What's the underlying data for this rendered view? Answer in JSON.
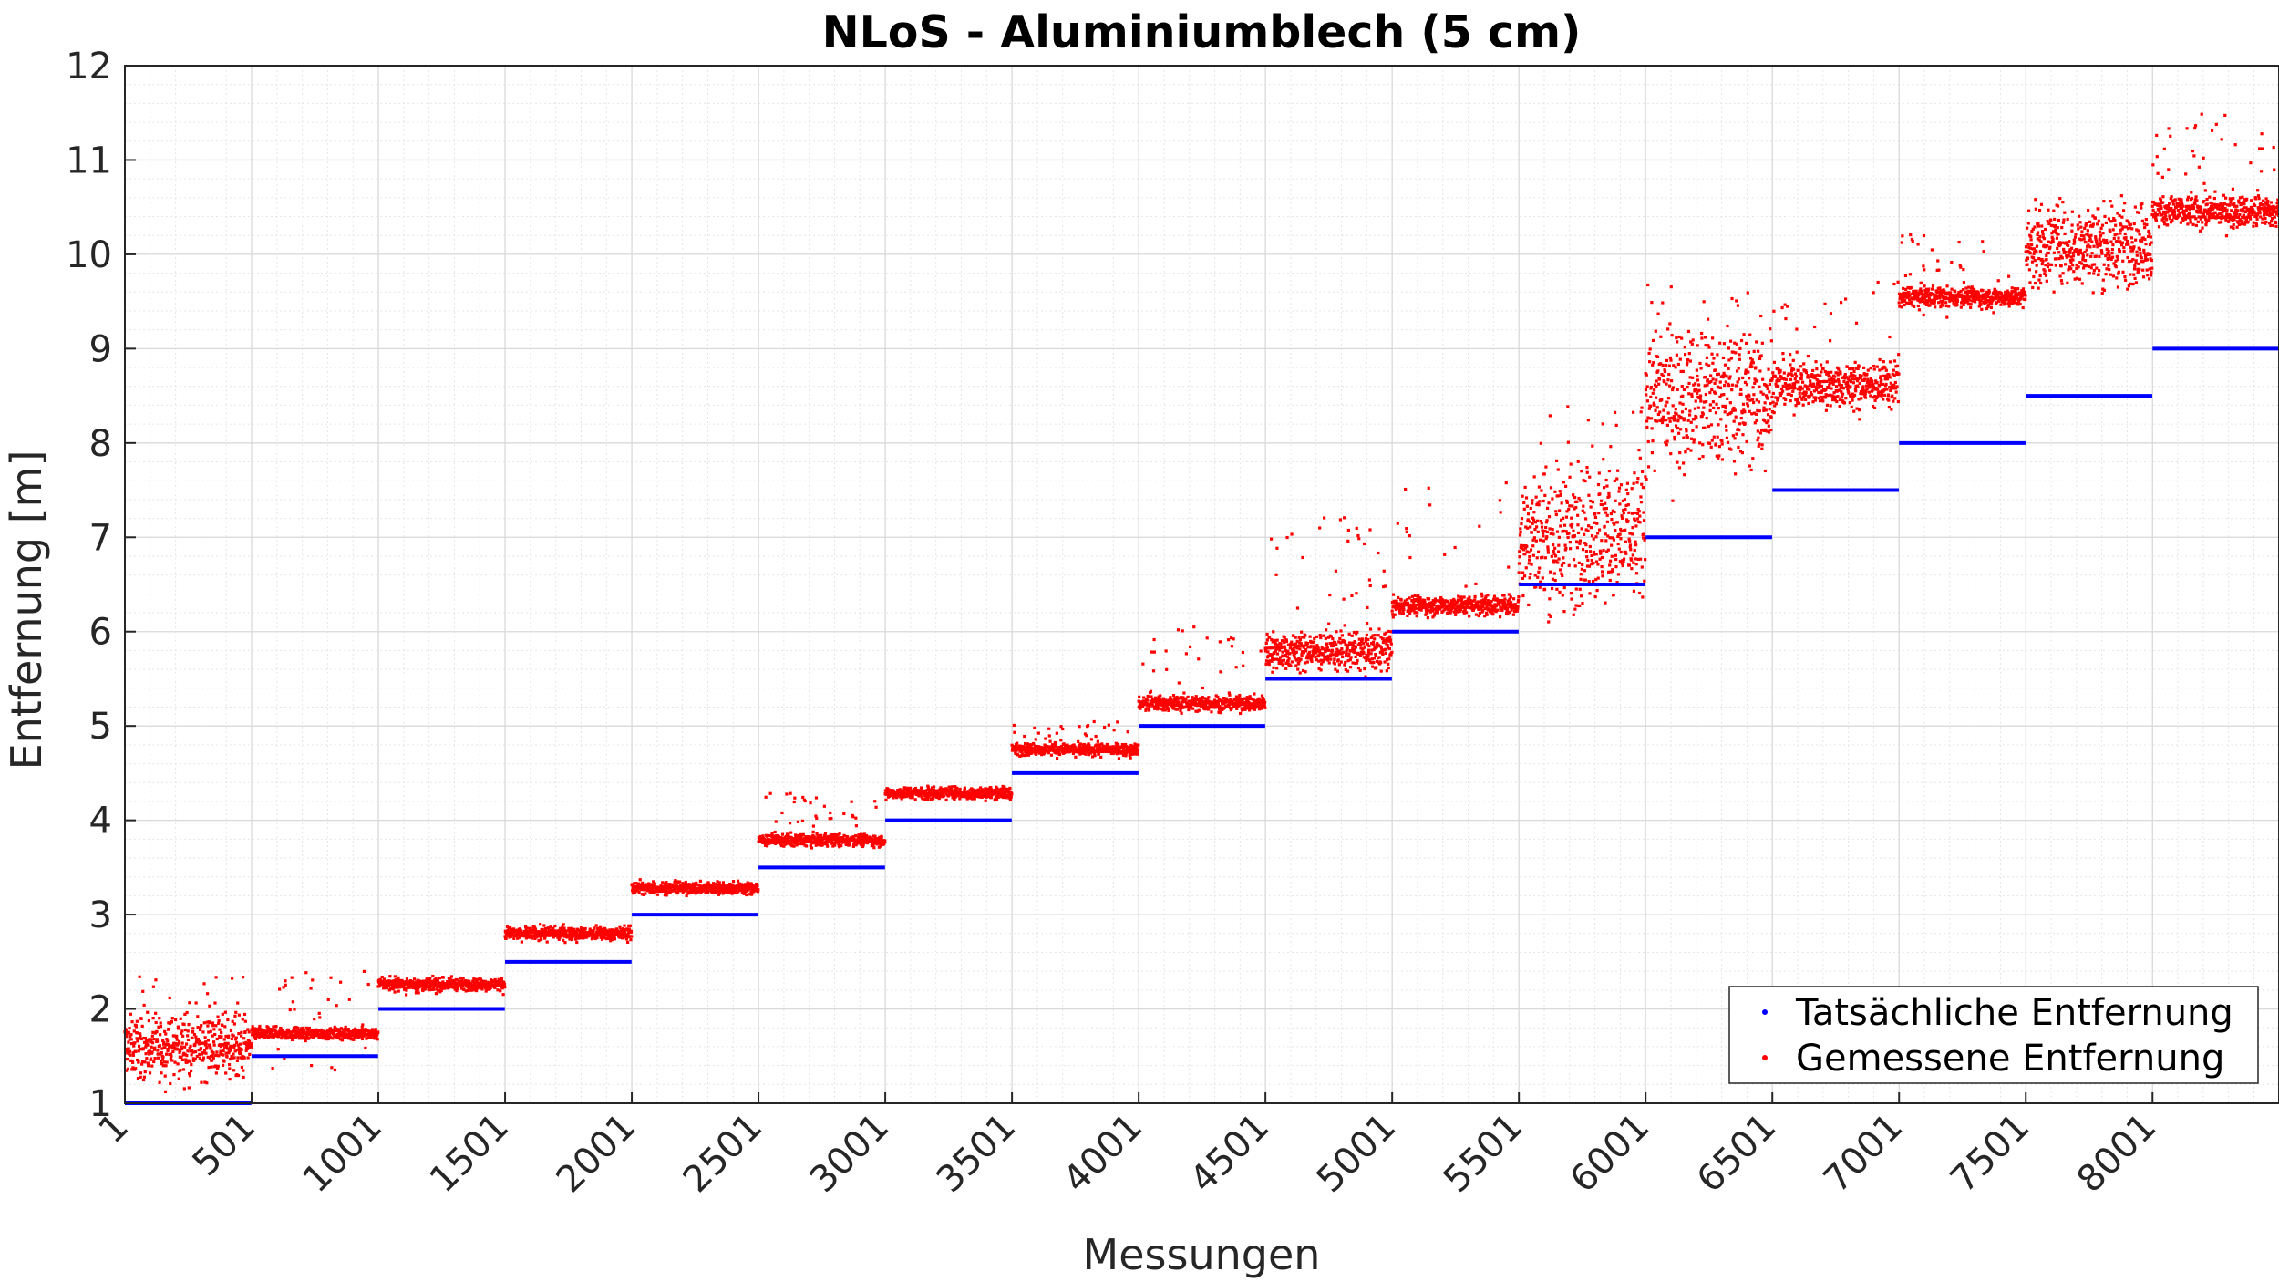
{
  "chart_data": {
    "type": "scatter",
    "title": "NLoS - Aluminiumblech (5 cm)",
    "xlabel": "Messungen",
    "ylabel": "Entfernung [m]",
    "xlim": [
      1,
      8500
    ],
    "ylim": [
      1,
      12
    ],
    "xticks": [
      1,
      501,
      1001,
      1501,
      2001,
      2501,
      3001,
      3501,
      4001,
      4501,
      5001,
      5501,
      6001,
      6501,
      7001,
      7501,
      8001
    ],
    "xtick_labels": [
      "1",
      "501",
      "1001",
      "1501",
      "2001",
      "2501",
      "3001",
      "3501",
      "4001",
      "4501",
      "5001",
      "5501",
      "6001",
      "6501",
      "7001",
      "7501",
      "8001"
    ],
    "yticks": [
      1,
      2,
      3,
      4,
      5,
      6,
      7,
      8,
      9,
      10,
      11,
      12
    ],
    "ytick_labels": [
      "1",
      "2",
      "3",
      "4",
      "5",
      "6",
      "7",
      "8",
      "9",
      "10",
      "11",
      "12"
    ],
    "grid": true,
    "minor_grid": true,
    "legend_position": "bottom-right",
    "series": [
      {
        "name": "Tatsächliche Entfernung",
        "color": "#0000ff",
        "segments": [
          {
            "x_start": 1,
            "x_end": 500,
            "y": 1.0
          },
          {
            "x_start": 501,
            "x_end": 1000,
            "y": 1.5
          },
          {
            "x_start": 1001,
            "x_end": 1500,
            "y": 2.0
          },
          {
            "x_start": 1501,
            "x_end": 2000,
            "y": 2.5
          },
          {
            "x_start": 2001,
            "x_end": 2500,
            "y": 3.0
          },
          {
            "x_start": 2501,
            "x_end": 3000,
            "y": 3.5
          },
          {
            "x_start": 3001,
            "x_end": 3500,
            "y": 4.0
          },
          {
            "x_start": 3501,
            "x_end": 4000,
            "y": 4.5
          },
          {
            "x_start": 4001,
            "x_end": 4500,
            "y": 5.0
          },
          {
            "x_start": 4501,
            "x_end": 5000,
            "y": 5.5
          },
          {
            "x_start": 5001,
            "x_end": 5500,
            "y": 6.0
          },
          {
            "x_start": 5501,
            "x_end": 6000,
            "y": 6.5
          },
          {
            "x_start": 6001,
            "x_end": 6500,
            "y": 7.0
          },
          {
            "x_start": 6501,
            "x_end": 7000,
            "y": 7.5
          },
          {
            "x_start": 7001,
            "x_end": 7500,
            "y": 8.0
          },
          {
            "x_start": 7501,
            "x_end": 8000,
            "y": 8.5
          },
          {
            "x_start": 8001,
            "x_end": 8500,
            "y": 9.0
          }
        ]
      },
      {
        "name": "Gemessene Entfernung",
        "color": "#ff0000",
        "blocks": [
          {
            "x_start": 1,
            "x_end": 500,
            "typical": 1.6,
            "spread": 0.15,
            "outlier_min": 1.3,
            "outlier_max": 2.35
          },
          {
            "x_start": 501,
            "x_end": 1000,
            "typical": 1.74,
            "spread": 0.03,
            "outlier_min": 1.35,
            "outlier_max": 2.4
          },
          {
            "x_start": 1001,
            "x_end": 1500,
            "typical": 2.26,
            "spread": 0.03,
            "outlier_min": 2.15,
            "outlier_max": 2.35
          },
          {
            "x_start": 1501,
            "x_end": 2000,
            "typical": 2.8,
            "spread": 0.03,
            "outlier_min": 2.7,
            "outlier_max": 2.9
          },
          {
            "x_start": 2001,
            "x_end": 2500,
            "typical": 3.28,
            "spread": 0.03,
            "outlier_min": 3.2,
            "outlier_max": 3.38
          },
          {
            "x_start": 2501,
            "x_end": 3000,
            "typical": 3.79,
            "spread": 0.03,
            "outlier_min": 3.7,
            "outlier_max": 4.3
          },
          {
            "x_start": 3001,
            "x_end": 3500,
            "typical": 4.29,
            "spread": 0.03,
            "outlier_min": 4.2,
            "outlier_max": 4.38
          },
          {
            "x_start": 3501,
            "x_end": 4000,
            "typical": 4.75,
            "spread": 0.03,
            "outlier_min": 4.65,
            "outlier_max": 5.05
          },
          {
            "x_start": 4001,
            "x_end": 4500,
            "typical": 5.24,
            "spread": 0.04,
            "outlier_min": 5.1,
            "outlier_max": 6.1
          },
          {
            "x_start": 4501,
            "x_end": 5000,
            "typical": 5.8,
            "spread": 0.1,
            "outlier_min": 5.6,
            "outlier_max": 7.25
          },
          {
            "x_start": 5001,
            "x_end": 5500,
            "typical": 6.28,
            "spread": 0.05,
            "outlier_min": 6.1,
            "outlier_max": 7.8
          },
          {
            "x_start": 5501,
            "x_end": 6000,
            "typical": 7.0,
            "spread": 0.35,
            "outlier_min": 6.6,
            "outlier_max": 8.6
          },
          {
            "x_start": 6001,
            "x_end": 6500,
            "typical": 8.5,
            "spread": 0.35,
            "outlier_min": 7.6,
            "outlier_max": 9.7
          },
          {
            "x_start": 6501,
            "x_end": 7000,
            "typical": 8.62,
            "spread": 0.12,
            "outlier_min": 8.05,
            "outlier_max": 9.75
          },
          {
            "x_start": 7001,
            "x_end": 7500,
            "typical": 9.55,
            "spread": 0.05,
            "outlier_min": 9.3,
            "outlier_max": 10.3
          },
          {
            "x_start": 7501,
            "x_end": 8000,
            "typical": 10.1,
            "spread": 0.2,
            "outlier_min": 9.55,
            "outlier_max": 10.75
          },
          {
            "x_start": 8001,
            "x_end": 8500,
            "typical": 10.45,
            "spread": 0.08,
            "outlier_min": 10.3,
            "outlier_max": 11.5
          }
        ]
      }
    ]
  }
}
